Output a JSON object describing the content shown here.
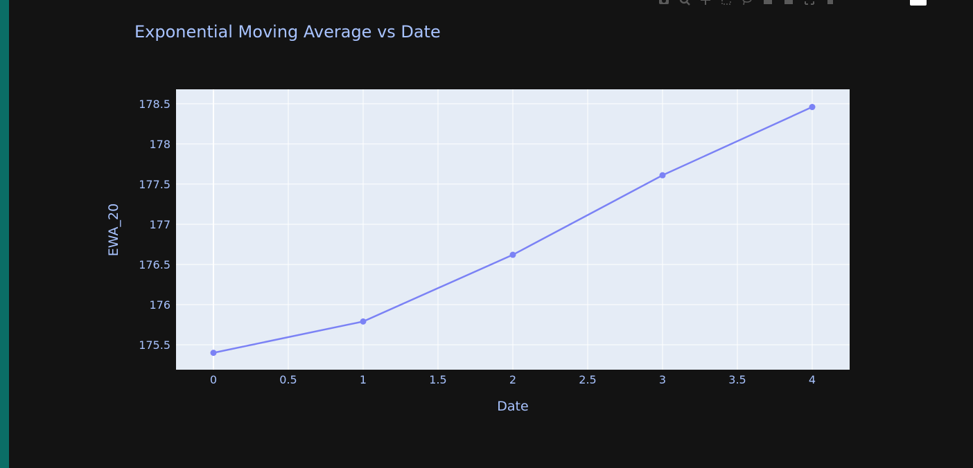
{
  "colors": {
    "page_background": "#131313",
    "accent_bar": "#0b6e66",
    "plot_background": "#e5ecf6",
    "grid": "#ffffff",
    "series": "#7b82f5",
    "text": "#a8c3ff"
  },
  "modebar": {
    "icons": [
      "camera-icon",
      "zoom-icon",
      "pan-icon",
      "box-select-icon",
      "lasso-icon",
      "zoom-in-icon",
      "zoom-out-icon",
      "autoscale-icon",
      "home-icon"
    ]
  },
  "chart_data": {
    "type": "line",
    "title": "Exponential Moving Average vs Date",
    "xlabel": "Date",
    "ylabel": "EWA_20",
    "x": [
      0,
      1,
      2,
      3,
      4
    ],
    "series": [
      {
        "values": [
          175.4,
          175.79,
          176.62,
          177.61,
          178.46
        ]
      }
    ],
    "xlim": [
      -0.25,
      4.25
    ],
    "ylim": [
      175.19,
      178.68
    ],
    "xticks": [
      0,
      0.5,
      1,
      1.5,
      2,
      2.5,
      3,
      3.5,
      4
    ],
    "xtick_labels": [
      "0",
      "0.5",
      "1",
      "1.5",
      "2",
      "2.5",
      "3",
      "3.5",
      "4"
    ],
    "yticks": [
      175.5,
      176,
      176.5,
      177,
      177.5,
      178,
      178.5
    ],
    "ytick_labels": [
      "175.5",
      "176",
      "176.5",
      "177",
      "177.5",
      "178",
      "178.5"
    ],
    "markers": true,
    "grid": true,
    "legend": "none"
  }
}
